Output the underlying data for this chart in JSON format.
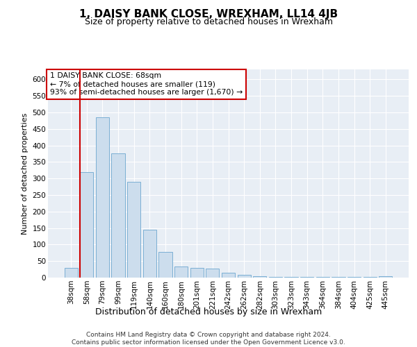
{
  "title": "1, DAISY BANK CLOSE, WREXHAM, LL14 4JB",
  "subtitle": "Size of property relative to detached houses in Wrexham",
  "xlabel": "Distribution of detached houses by size in Wrexham",
  "ylabel": "Number of detached properties",
  "categories": [
    "38sqm",
    "58sqm",
    "79sqm",
    "99sqm",
    "119sqm",
    "140sqm",
    "160sqm",
    "180sqm",
    "201sqm",
    "221sqm",
    "242sqm",
    "262sqm",
    "282sqm",
    "303sqm",
    "323sqm",
    "343sqm",
    "364sqm",
    "384sqm",
    "404sqm",
    "425sqm",
    "445sqm"
  ],
  "values": [
    30,
    320,
    485,
    375,
    290,
    145,
    77,
    33,
    30,
    27,
    15,
    8,
    4,
    3,
    3,
    3,
    3,
    2,
    3,
    2,
    5
  ],
  "bar_color": "#ccdded",
  "bar_edge_color": "#7bafd4",
  "vline_color": "#cc0000",
  "annotation_text": "1 DAISY BANK CLOSE: 68sqm\n← 7% of detached houses are smaller (119)\n93% of semi-detached houses are larger (1,670) →",
  "annotation_box_color": "#ffffff",
  "annotation_box_edge": "#cc0000",
  "ylim": [
    0,
    630
  ],
  "yticks": [
    0,
    50,
    100,
    150,
    200,
    250,
    300,
    350,
    400,
    450,
    500,
    550,
    600
  ],
  "background_color": "#ffffff",
  "plot_bg_color": "#e8eef5",
  "grid_color": "#ffffff",
  "footer_text": "Contains HM Land Registry data © Crown copyright and database right 2024.\nContains public sector information licensed under the Open Government Licence v3.0.",
  "title_fontsize": 11,
  "subtitle_fontsize": 9,
  "xlabel_fontsize": 9,
  "ylabel_fontsize": 8,
  "tick_fontsize": 7.5,
  "footer_fontsize": 6.5,
  "vline_bar_index": 1
}
